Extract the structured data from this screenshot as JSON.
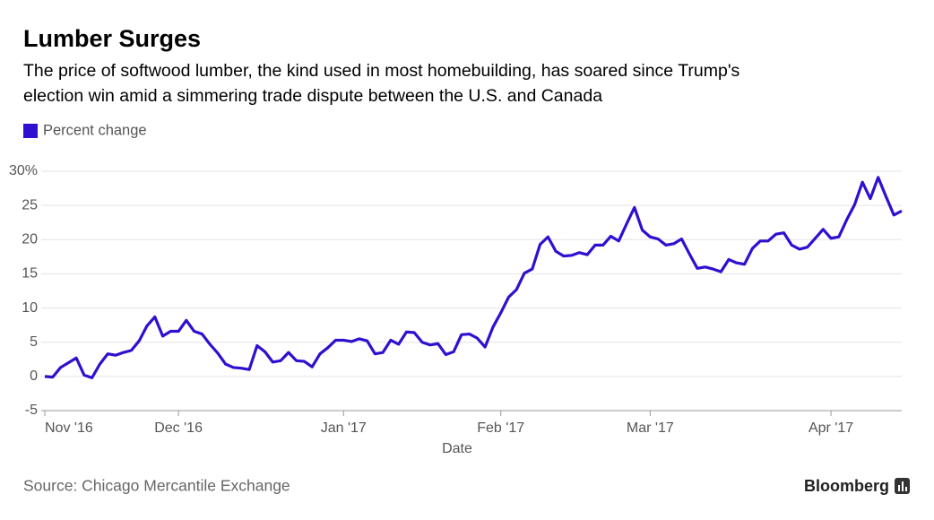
{
  "chart_data": {
    "type": "line",
    "title": "Lumber Surges",
    "subtitle": [
      "The price of softwood lumber, the kind used in most homebuilding, has soared since Trump's",
      "election win amid a simmering trade dispute between the U.S. and Canada"
    ],
    "x_label": "Date",
    "source": "Source: Chicago Mercantile Exchange",
    "brand": "Bloomberg",
    "categories": [
      "Nov '16",
      null,
      null,
      null,
      null,
      null,
      null,
      null,
      null,
      null,
      null,
      null,
      null,
      null,
      null,
      null,
      null,
      "Dec '16",
      null,
      null,
      null,
      null,
      null,
      null,
      null,
      null,
      null,
      null,
      null,
      null,
      null,
      null,
      null,
      null,
      null,
      null,
      null,
      null,
      "Jan '17",
      null,
      null,
      null,
      null,
      null,
      null,
      null,
      null,
      null,
      null,
      null,
      null,
      null,
      null,
      null,
      null,
      null,
      null,
      null,
      "Feb '17",
      null,
      null,
      null,
      null,
      null,
      null,
      null,
      null,
      null,
      null,
      null,
      null,
      null,
      null,
      null,
      null,
      null,
      null,
      "Mar '17",
      null,
      null,
      null,
      null,
      null,
      null,
      null,
      null,
      null,
      null,
      null,
      null,
      null,
      null,
      null,
      null,
      null,
      null,
      null,
      null,
      null,
      null,
      "Apr '17",
      null,
      null,
      null,
      null,
      null,
      null,
      null,
      null,
      null
    ],
    "series": [
      {
        "name": "Percent change",
        "color": "#2f10d0",
        "values": [
          0,
          -0.1,
          1.3,
          2,
          2.7,
          0.2,
          -0.2,
          1.8,
          3.3,
          3.1,
          3.5,
          3.8,
          5.2,
          7.4,
          8.7,
          5.9,
          6.6,
          6.6,
          8.2,
          6.6,
          6.2,
          4.7,
          3.4,
          1.8,
          1.3,
          1.2,
          1.0,
          4.5,
          3.6,
          2.1,
          2.3,
          3.5,
          2.3,
          2.2,
          1.4,
          3.3,
          4.2,
          5.3,
          5.3,
          5.1,
          5.5,
          5.2,
          3.3,
          3.5,
          5.3,
          4.7,
          6.5,
          6.4,
          5.0,
          4.6,
          4.8,
          3.2,
          3.6,
          6.1,
          6.2,
          5.6,
          4.3,
          7.2,
          9.3,
          11.6,
          12.7,
          15.1,
          15.7,
          19.3,
          20.4,
          18.3,
          17.6,
          17.7,
          18.1,
          17.8,
          19.2,
          19.2,
          20.5,
          19.8,
          22.3,
          24.7,
          21.4,
          20.4,
          20.1,
          19.2,
          19.4,
          20.1,
          17.9,
          15.8,
          16.0,
          15.7,
          15.3,
          17.1,
          16.6,
          16.4,
          18.7,
          19.8,
          19.8,
          20.8,
          21.0,
          19.2,
          18.6,
          18.9,
          20.2,
          21.5,
          20.2,
          20.4,
          22.9,
          25.1,
          28.4,
          26.0,
          29.1,
          26.3,
          23.6,
          24.2
        ]
      }
    ],
    "ylim": [
      -5,
      30
    ],
    "yticks": [
      -5,
      0,
      5,
      10,
      15,
      20,
      25,
      {
        "value": 30,
        "label": "30%"
      }
    ],
    "grid": true
  }
}
